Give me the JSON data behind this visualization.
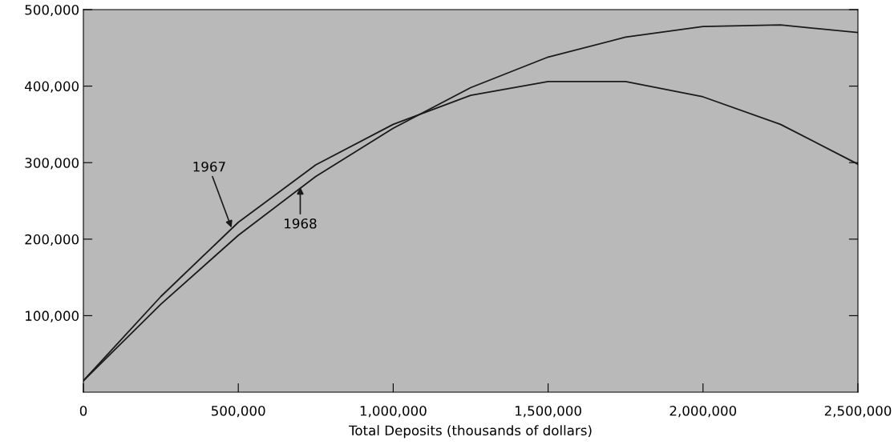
{
  "chart_data": {
    "type": "line",
    "xlabel": "Total Deposits (thousands of dollars)",
    "x": [
      0,
      250000,
      500000,
      750000,
      1000000,
      1250000,
      1500000,
      1750000,
      2000000,
      2250000,
      2500000
    ],
    "series": [
      {
        "color": "#1a1a1a",
        "values": [
          15000,
          125000,
          222000,
          297000,
          350000,
          388000,
          406000,
          406000,
          386000,
          350000,
          298000
        ]
      },
      {
        "color": "#1a1a1a",
        "values": [
          15000,
          115000,
          205000,
          282000,
          345000,
          398000,
          438000,
          464000,
          478000,
          480000,
          470000
        ]
      }
    ],
    "xlim": [
      0,
      2500000
    ],
    "ylim": [
      0,
      500000
    ],
    "xticks": [
      0,
      {
        "value": 500000,
        "label": "500,000"
      },
      {
        "value": 1000000,
        "label": "1,000,000"
      },
      {
        "value": 1500000,
        "label": "1,500,000"
      },
      {
        "value": 2000000,
        "label": "2,000,000"
      },
      {
        "value": 2500000,
        "label": "2,500,000"
      }
    ],
    "yticks": [
      {
        "value": 100000,
        "label": "100,000"
      },
      {
        "value": 200000,
        "label": "200,000"
      },
      {
        "value": 300000,
        "label": "300,000"
      },
      {
        "value": 400000,
        "label": "400,000"
      },
      {
        "value": 500000,
        "label": "500,000"
      }
    ],
    "annotations": [
      {
        "text": "1967",
        "x": 478000,
        "y": 215000
      },
      {
        "text": "1968",
        "x": 700000,
        "y": 268000
      }
    ],
    "grid": false,
    "legend": false,
    "marker": "none",
    "line_style": "solid"
  }
}
